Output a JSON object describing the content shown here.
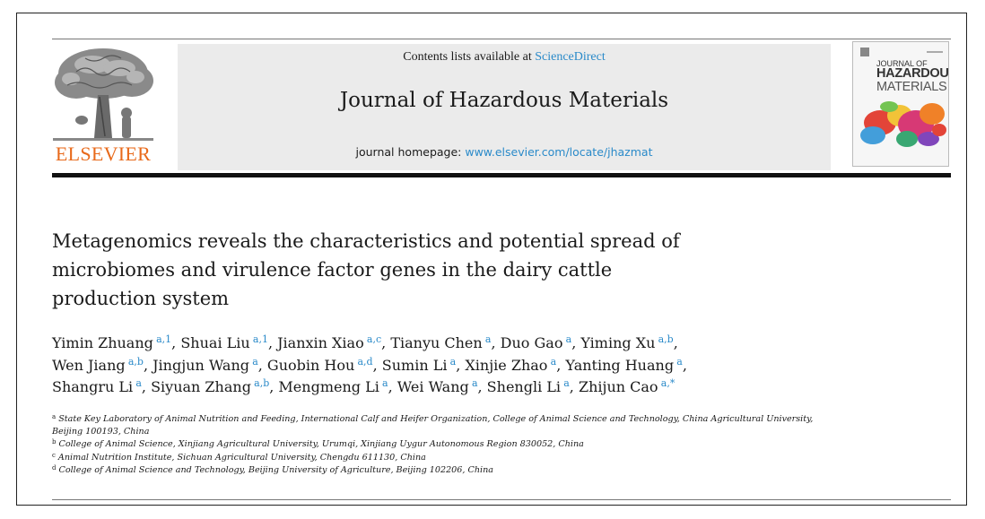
{
  "header": {
    "contents_prefix": "Contents lists available at ",
    "contents_link": "ScienceDirect",
    "journal_title": "Journal of Hazardous Materials",
    "homepage_prefix": "journal homepage: ",
    "homepage_link": "www.elsevier.com/locate/jhazmat"
  },
  "publisher": {
    "wordmark": "ELSEVIER",
    "wordmark_color": "#e8691a"
  },
  "cover": {
    "title_line_1": "JOURNAL OF",
    "title_line_2": "HAZARDOUS",
    "title_line_3": "MATERIALS"
  },
  "article": {
    "title_lines": [
      "Metagenomics reveals the characteristics and potential spread of",
      "microbiomes and virulence factor genes in the dairy cattle",
      "production system"
    ]
  },
  "authors": [
    {
      "name": "Yimin Zhuang",
      "sup": "a,1"
    },
    {
      "name": "Shuai Liu",
      "sup": "a,1"
    },
    {
      "name": "Jianxin Xiao",
      "sup": "a,c"
    },
    {
      "name": "Tianyu Chen",
      "sup": "a"
    },
    {
      "name": "Duo Gao",
      "sup": "a"
    },
    {
      "name": "Yiming Xu",
      "sup": "a,b"
    },
    {
      "name": "Wen Jiang",
      "sup": "a,b"
    },
    {
      "name": "Jingjun Wang",
      "sup": "a"
    },
    {
      "name": "Guobin Hou",
      "sup": "a,d"
    },
    {
      "name": "Sumin Li",
      "sup": "a"
    },
    {
      "name": "Xinjie Zhao",
      "sup": "a"
    },
    {
      "name": "Yanting Huang",
      "sup": "a"
    },
    {
      "name": "Shangru Li",
      "sup": "a"
    },
    {
      "name": "Siyuan Zhang",
      "sup": "a,b"
    },
    {
      "name": "Mengmeng Li",
      "sup": "a"
    },
    {
      "name": "Wei Wang",
      "sup": "a"
    },
    {
      "name": "Shengli Li",
      "sup": "a"
    },
    {
      "name": "Zhijun Cao",
      "sup": "a,*"
    }
  ],
  "affiliations": [
    {
      "label": "a",
      "text": "State Key Laboratory of Animal Nutrition and Feeding, International Calf and Heifer Organization, College of Animal Science and Technology, China Agricultural University, Beijing 100193, China"
    },
    {
      "label": "b",
      "text": "College of Animal Science, Xinjiang Agricultural University, Urumqi, Xinjiang Uygur Autonomous Region 830052, China"
    },
    {
      "label": "c",
      "text": "Animal Nutrition Institute, Sichuan Agricultural University, Chengdu 611130, China"
    },
    {
      "label": "d",
      "text": "College of Animal Science and Technology, Beijing University of Agriculture, Beijing 102206, China"
    }
  ]
}
